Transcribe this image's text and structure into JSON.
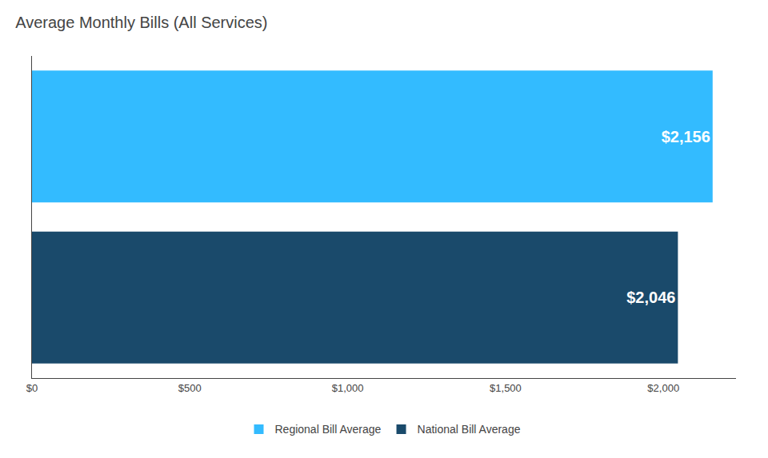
{
  "chart_data": {
    "type": "bar",
    "orientation": "horizontal",
    "title": "Average Monthly Bills (All Services)",
    "categories": [
      "Regional Bill Average",
      "National Bill Average"
    ],
    "values": [
      2156,
      2046
    ],
    "value_labels": [
      "$2,156",
      "$2,046"
    ],
    "colors": [
      "#33BBFF",
      "#1A4A6B"
    ],
    "xlim": [
      0,
      2230
    ],
    "xticks": [
      {
        "value": 0,
        "label": "$0"
      },
      {
        "value": 500,
        "label": "$500"
      },
      {
        "value": 1000,
        "label": "$1,000"
      },
      {
        "value": 1500,
        "label": "$1,500"
      },
      {
        "value": 2000,
        "label": "$2,000"
      }
    ],
    "data_labels": true,
    "tick_labels": "x",
    "legend": "bottom",
    "grid": false
  }
}
